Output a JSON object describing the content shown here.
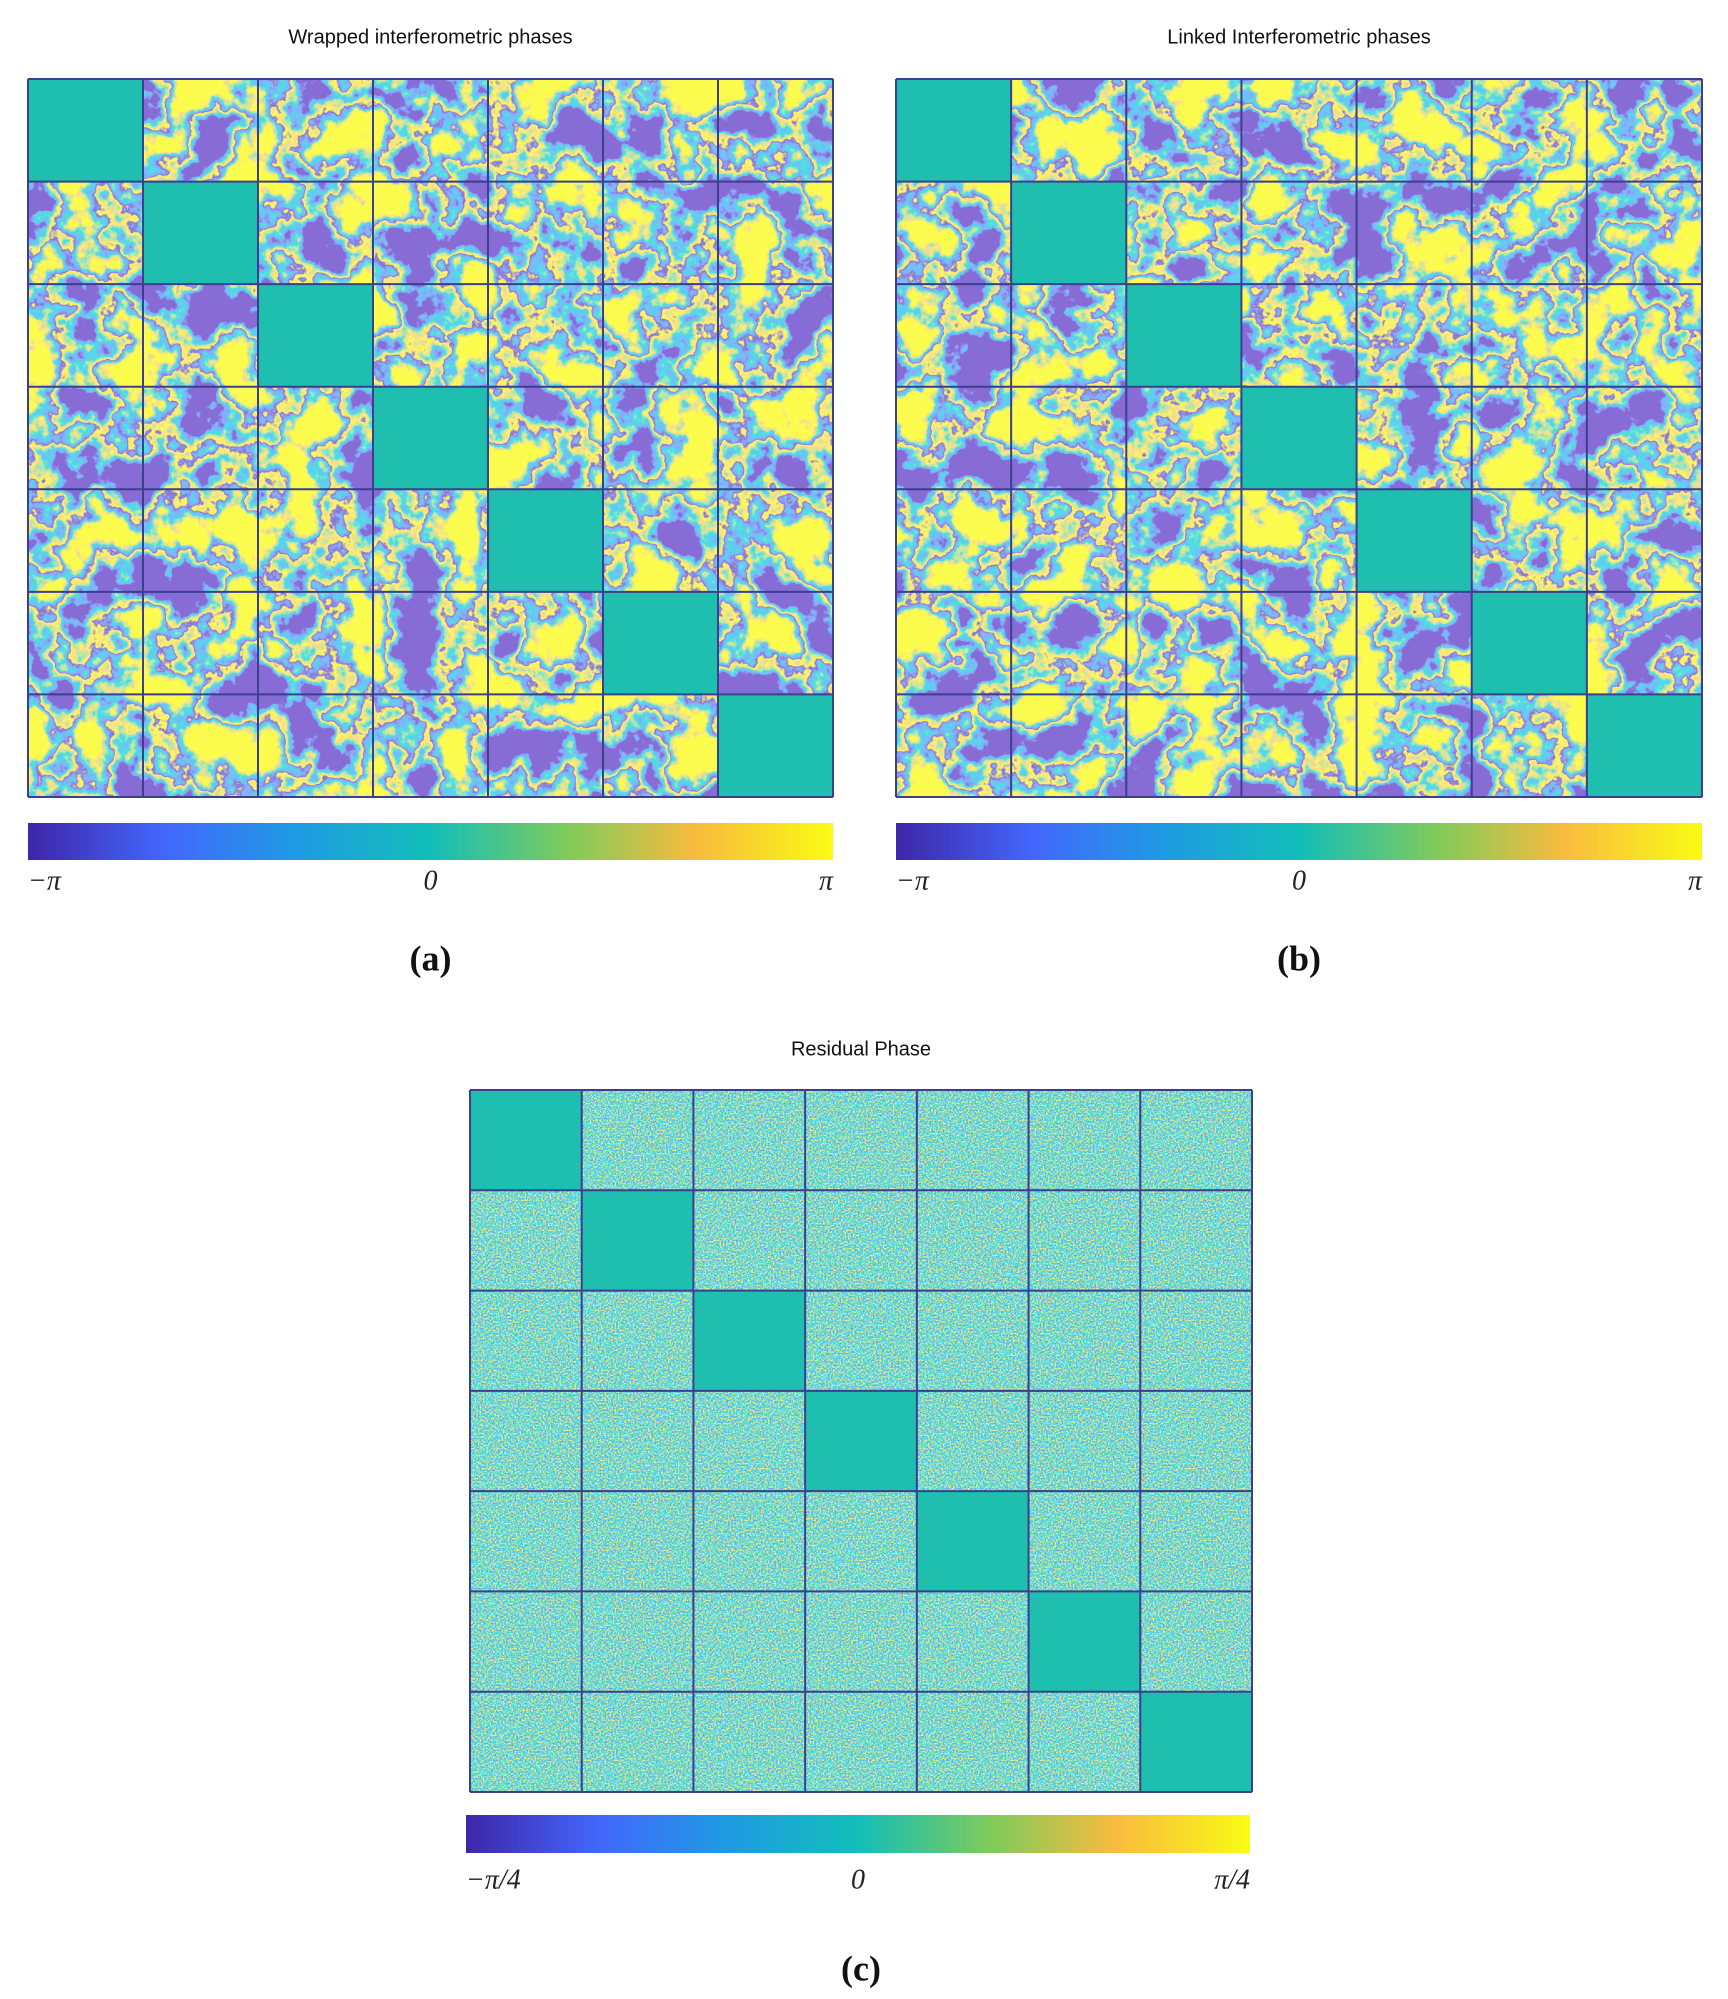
{
  "panels": [
    {
      "title": "Wrapped interferometric phases",
      "colorbar_labels": [
        "−π",
        "0",
        "π"
      ],
      "caption": "(a)"
    },
    {
      "title": "Linked Interferometric phases",
      "colorbar_labels": [
        "−π",
        "0",
        "π"
      ],
      "caption": "(b)"
    },
    {
      "title": "Residual Phase",
      "colorbar_labels": [
        "−π/4",
        "0",
        "π/4"
      ],
      "caption": "(c)"
    }
  ]
}
